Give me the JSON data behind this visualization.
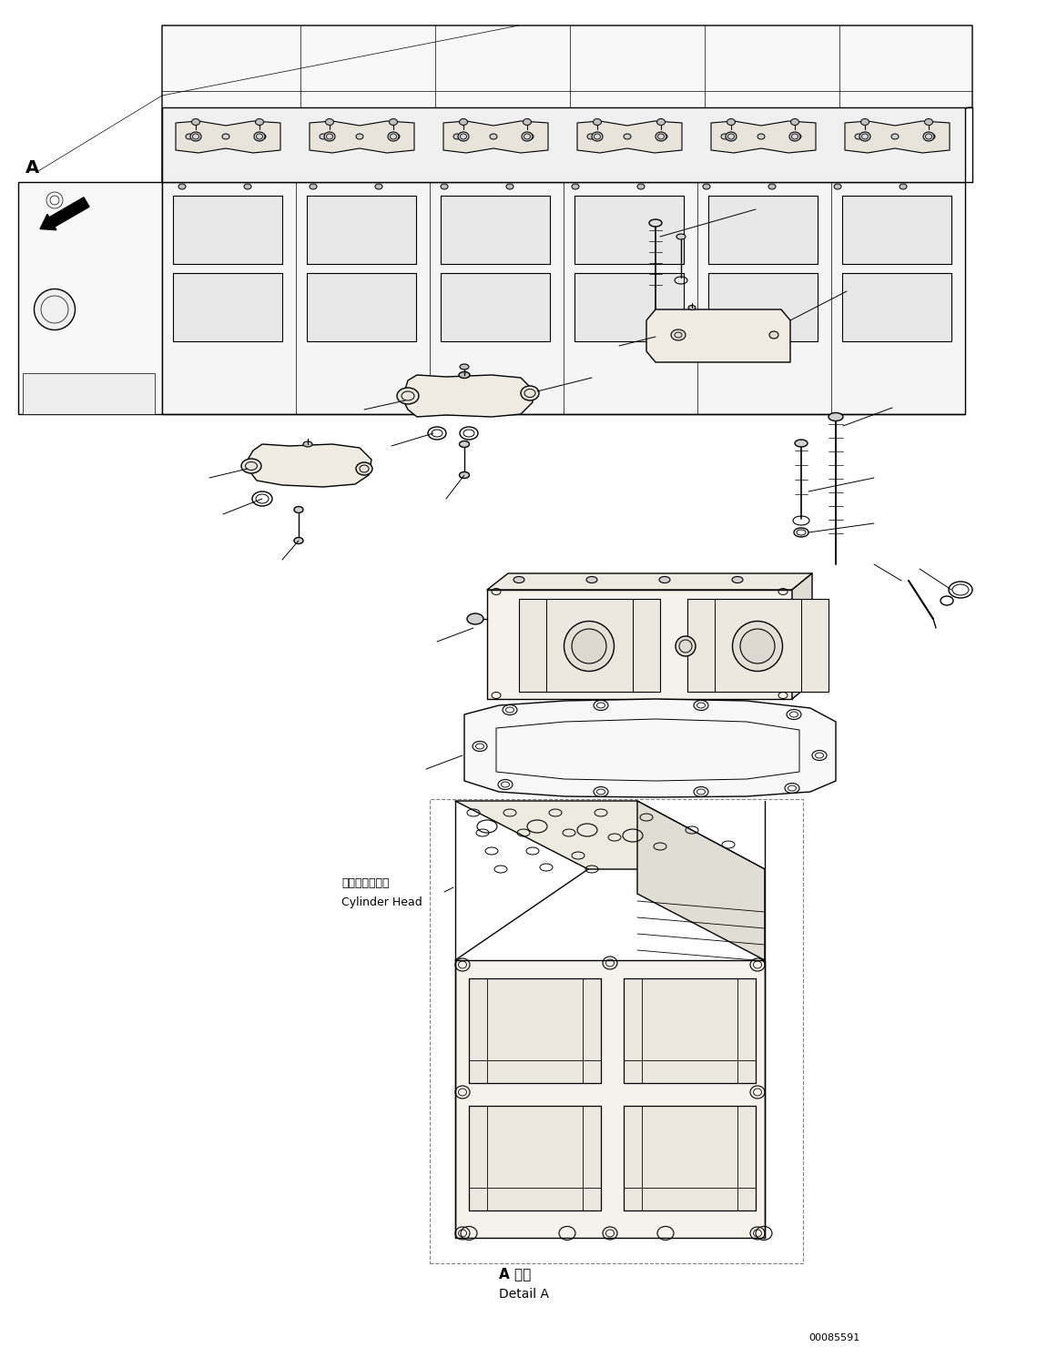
{
  "figure_width": 11.39,
  "figure_height": 14.91,
  "dpi": 100,
  "bg_color": "#ffffff",
  "line_color": "#000000",
  "label_A": "A",
  "label_detail_A_jp": "A 詳細",
  "label_detail_A_en": "Detail A",
  "label_cylinder_head_jp": "シリンダヘッド",
  "label_cylinder_head_en": "Cylinder Head",
  "part_number": "00085591",
  "lw": 1.0,
  "tlw": 0.7,
  "thin": 0.5
}
